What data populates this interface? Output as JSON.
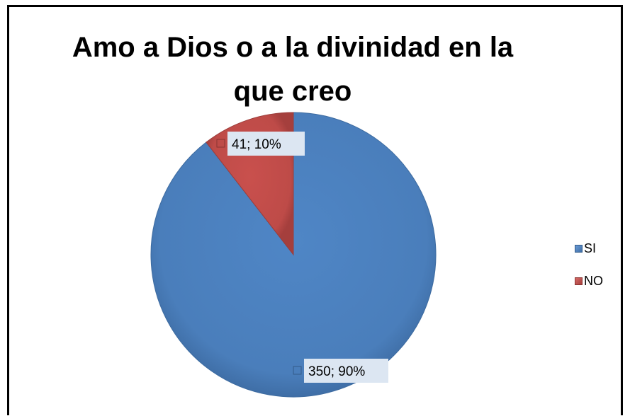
{
  "chart_data": {
    "type": "pie",
    "title": "Amo a Dios o a la divinidad en la que creo",
    "title_lines": [
      "Amo a Dios o a la divinidad en la",
      "que creo"
    ],
    "slices": [
      {
        "label": "SI",
        "value": 350,
        "percent": 90,
        "data_label": "350; 90%",
        "color": "#4a7ebb"
      },
      {
        "label": "NO",
        "value": 41,
        "percent": 10,
        "data_label": "41; 10%",
        "color": "#be4b48"
      }
    ],
    "legend": {
      "position": "right",
      "entries": [
        "SI",
        "NO"
      ]
    },
    "label_background": "#dce6f2"
  }
}
